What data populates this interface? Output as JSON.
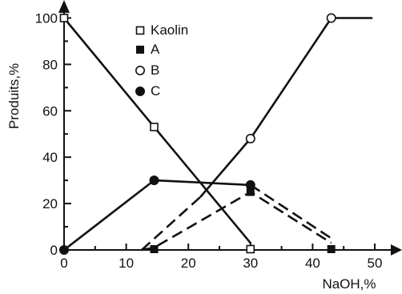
{
  "chart_data": {
    "type": "line",
    "title": "",
    "xlabel": "NaOH,%",
    "ylabel": "Produits,%",
    "xlim": [
      0,
      50
    ],
    "ylim": [
      0,
      105
    ],
    "x_ticks": [
      0,
      10,
      20,
      30,
      40,
      50
    ],
    "x_tick_labels": [
      "0",
      "10",
      "20",
      "30",
      "40",
      "50"
    ],
    "y_ticks": [
      0,
      20,
      40,
      60,
      80,
      100
    ],
    "y_tick_labels": [
      "0",
      "20",
      "40",
      "60",
      "80",
      "100"
    ],
    "grid": false,
    "legend_position": "top-center",
    "series": [
      {
        "name": "Kaolin",
        "marker": "open-square",
        "line_style": "solid",
        "x": [
          0,
          14.5,
          30
        ],
        "y": [
          100,
          53,
          0
        ],
        "line_x": [
          0,
          14.5,
          30
        ],
        "line_y": [
          100,
          53,
          3
        ]
      },
      {
        "name": "A",
        "marker": "filled-square",
        "line_style": "dashed",
        "x": [
          14.5,
          30,
          43
        ],
        "y": [
          0,
          25,
          0
        ],
        "line_x": [
          12.5,
          14.5,
          30,
          43
        ],
        "line_y": [
          0,
          1,
          25,
          3
        ]
      },
      {
        "name": "B",
        "marker": "open-circle",
        "line_style": "mixed",
        "x": [
          30,
          43
        ],
        "y": [
          48,
          100
        ],
        "line_x": [
          12.5,
          22,
          30,
          43,
          49.5
        ],
        "line_y": [
          0,
          23,
          48,
          100,
          100
        ],
        "dashed_until_x": 22
      },
      {
        "name": "C",
        "marker": "filled-circle",
        "line_style": "solid-then-dashed",
        "x": [
          0,
          14.5,
          30
        ],
        "y": [
          0,
          30,
          28
        ],
        "line_x": [
          0,
          14.5,
          30,
          43
        ],
        "line_y": [
          0,
          30,
          28,
          5
        ],
        "dashed_from_x": 30
      }
    ]
  }
}
